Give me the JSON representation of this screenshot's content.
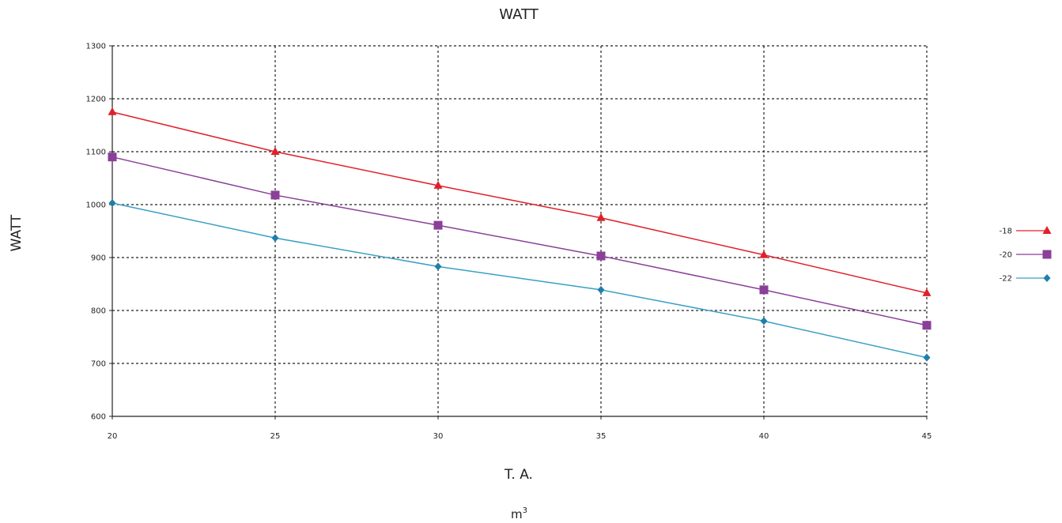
{
  "chart_data": {
    "type": "line",
    "title": "WATT",
    "ylabel": "WATT",
    "xlabel": "T. A.",
    "unit": {
      "base": "m",
      "superscript": "3"
    },
    "x": [
      20,
      25,
      30,
      35,
      40,
      45
    ],
    "x_tick_labels": [
      "20",
      "25",
      "30",
      "35",
      "40",
      "45"
    ],
    "ylim": [
      600,
      1300
    ],
    "y_ticks": [
      600,
      700,
      800,
      900,
      1000,
      1100,
      1200,
      1300
    ],
    "grid": true,
    "legend_position": "right",
    "series": [
      {
        "name": "-18",
        "color": "#e0202a",
        "marker": "triangle",
        "values": [
          1175,
          1100,
          1036,
          975,
          905,
          833
        ]
      },
      {
        "name": "-20",
        "color": "#8b3f98",
        "marker": "square",
        "values": [
          1090,
          1018,
          961,
          903,
          839,
          772
        ]
      },
      {
        "name": "-22",
        "color": "#3a9fc4",
        "marker_color": "#1f7fab",
        "marker": "diamond",
        "values": [
          1003,
          937,
          883,
          839,
          780,
          711
        ]
      }
    ]
  }
}
